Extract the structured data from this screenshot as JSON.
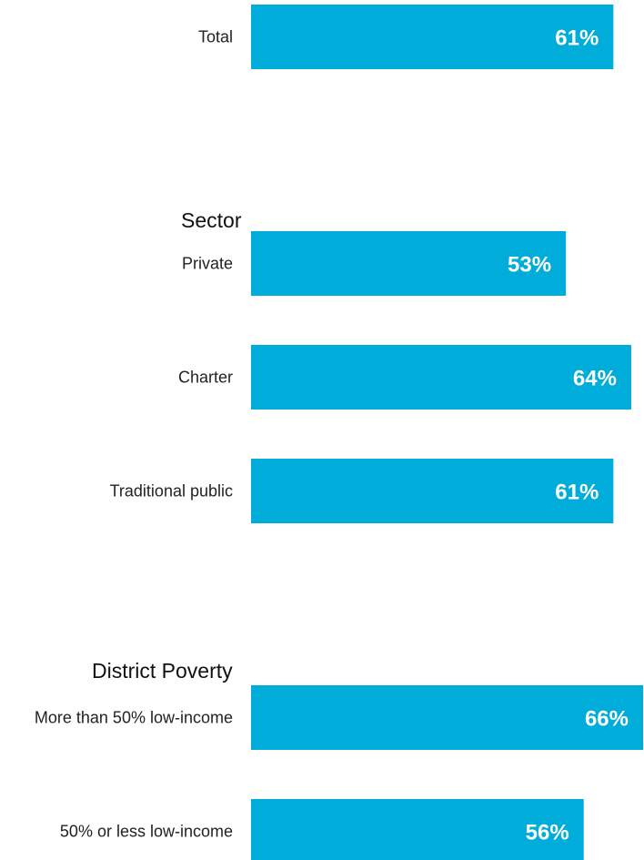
{
  "chart_data": {
    "type": "bar",
    "orientation": "horizontal",
    "title": "",
    "xlabel": "",
    "ylabel": "",
    "xlim": [
      0,
      66
    ],
    "grid": false,
    "legend": "none",
    "bar_color": "#00acd9",
    "value_suffix": "%",
    "groups": [
      {
        "name": "",
        "items": [
          {
            "category": "Total",
            "value": 61,
            "label": "61%"
          }
        ]
      },
      {
        "name": "Sector",
        "items": [
          {
            "category": "Private",
            "value": 53,
            "label": "53%"
          },
          {
            "category": "Charter",
            "value": 64,
            "label": "64%"
          },
          {
            "category": "Traditional public",
            "value": 61,
            "label": "61%"
          }
        ]
      },
      {
        "name": "District Poverty",
        "items": [
          {
            "category": "More than 50% low-income",
            "value": 66,
            "label": "66%"
          },
          {
            "category": "50% or less low-income",
            "value": 56,
            "label": "56%"
          }
        ]
      }
    ]
  }
}
